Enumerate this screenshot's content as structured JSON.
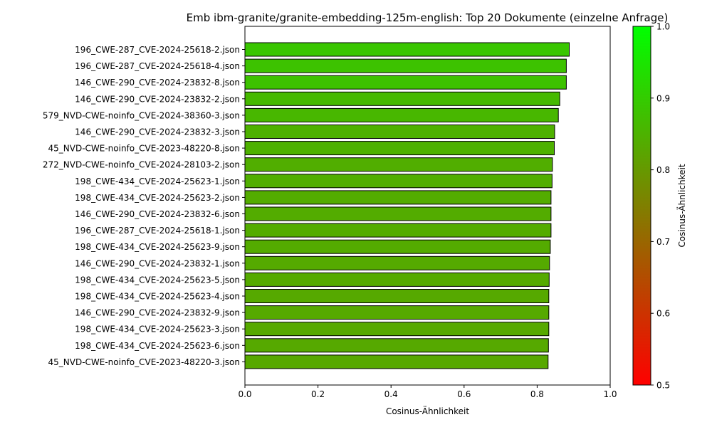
{
  "chart_data": {
    "type": "bar",
    "orientation": "horizontal",
    "title": "Emb ibm-granite/granite-embedding-125m-english: Top 20 Dokumente (einzelne Anfrage)",
    "xlabel": "Cosinus-Ähnlichkeit",
    "ylabel": "",
    "xlim": [
      0.0,
      1.0
    ],
    "xticks": [
      "0.0",
      "0.2",
      "0.4",
      "0.6",
      "0.8",
      "1.0"
    ],
    "grid": false,
    "categories": [
      "196_CWE-287_CVE-2024-25618-2.json",
      "196_CWE-287_CVE-2024-25618-4.json",
      "146_CWE-290_CVE-2024-23832-8.json",
      "146_CWE-290_CVE-2024-23832-2.json",
      "579_NVD-CWE-noinfo_CVE-2024-38360-3.json",
      "146_CWE-290_CVE-2024-23832-3.json",
      "45_NVD-CWE-noinfo_CVE-2023-48220-8.json",
      "272_NVD-CWE-noinfo_CVE-2024-28103-2.json",
      "198_CWE-434_CVE-2024-25623-1.json",
      "198_CWE-434_CVE-2024-25623-2.json",
      "146_CWE-290_CVE-2024-23832-6.json",
      "196_CWE-287_CVE-2024-25618-1.json",
      "198_CWE-434_CVE-2024-25623-9.json",
      "146_CWE-290_CVE-2024-23832-1.json",
      "198_CWE-434_CVE-2024-25623-5.json",
      "198_CWE-434_CVE-2024-25623-4.json",
      "146_CWE-290_CVE-2024-23832-9.json",
      "198_CWE-434_CVE-2024-25623-3.json",
      "198_CWE-434_CVE-2024-25623-6.json",
      "45_NVD-CWE-noinfo_CVE-2023-48220-3.json"
    ],
    "values": [
      0.888,
      0.88,
      0.88,
      0.862,
      0.858,
      0.848,
      0.847,
      0.842,
      0.841,
      0.838,
      0.838,
      0.838,
      0.836,
      0.834,
      0.833,
      0.832,
      0.832,
      0.832,
      0.831,
      0.83
    ],
    "colorbar": {
      "label": "Cosinus-Ähnlichkeit",
      "range": [
        0.5,
        1.0
      ],
      "ticks": [
        "0.5",
        "0.6",
        "0.7",
        "0.8",
        "0.9",
        "1.0"
      ],
      "color_low": "#ff0000",
      "color_high": "#00ff00"
    },
    "bar_edge_color": "#000000"
  }
}
